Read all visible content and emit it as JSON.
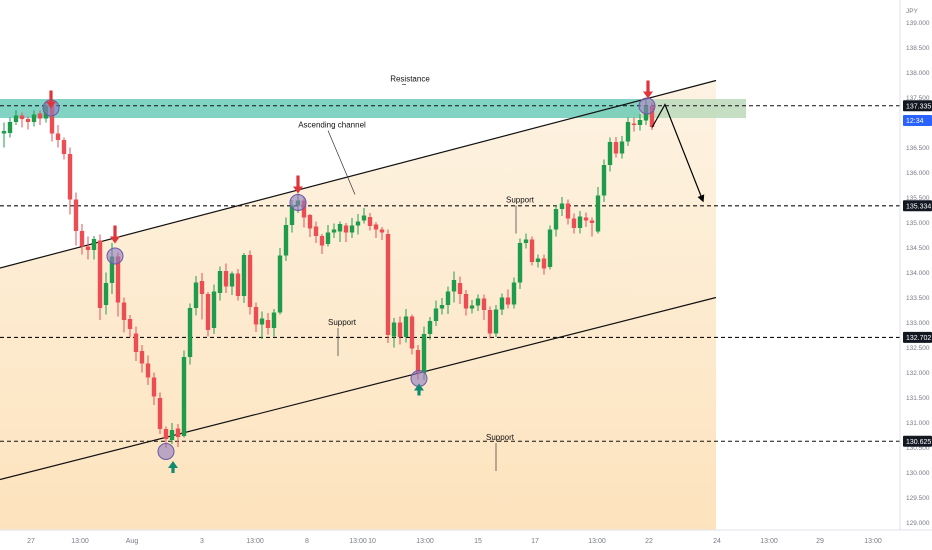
{
  "chart_data": {
    "type": "candlestick",
    "currency": "JPY",
    "ylim": [
      128.85,
      139.45
    ],
    "y_ticks": [
      "139.000",
      "138.500",
      "138.000",
      "137.500",
      "137.000",
      "136.500",
      "136.000",
      "135.500",
      "135.000",
      "134.500",
      "134.000",
      "133.500",
      "133.000",
      "132.500",
      "132.000",
      "131.500",
      "131.000",
      "130.500",
      "130.000",
      "129.500",
      "129.000"
    ],
    "x_ticks": [
      "27",
      "13:00",
      "Aug",
      "3",
      "13:00",
      "8",
      "13:00",
      "10",
      "13:00",
      "15",
      "17",
      "13:00",
      "22",
      "24",
      "13:00",
      "29",
      "13:00"
    ],
    "price_badges": [
      {
        "label": "137.335",
        "value": 137.335,
        "style": "dark"
      },
      {
        "label": "12:34",
        "value": 137.04,
        "style": "blue"
      },
      {
        "label": "135.334",
        "value": 135.334,
        "style": "dark"
      },
      {
        "label": "132.702",
        "value": 132.702,
        "style": "dark"
      },
      {
        "label": "130.625",
        "value": 130.625,
        "style": "dark"
      }
    ],
    "horizontal_levels": [
      137.335,
      135.334,
      132.702,
      130.625
    ],
    "resistance_zone": {
      "from": 137.09,
      "to": 137.47
    },
    "ascending_channel": {
      "upper": {
        "start": [
          0,
          134.09
        ],
        "end": [
          716,
          137.84
        ]
      },
      "lower": {
        "start": [
          0,
          129.86
        ],
        "end": [
          716,
          133.5
        ]
      }
    },
    "projection": [
      [
        652,
        136.9
      ],
      [
        665,
        137.36
      ],
      [
        703,
        135.43
      ]
    ],
    "annotations": [
      {
        "text": "Resistance",
        "level": 137.3
      },
      {
        "text": "Ascending channel",
        "level": 136.7
      },
      {
        "text": "Support",
        "level": 135.4
      },
      {
        "text": "Support",
        "level": 132.95
      },
      {
        "text": "Support",
        "level": 130.65
      }
    ],
    "markers": {
      "down_arrows": [
        [
          51,
          137.1
        ],
        [
          115,
          134.4
        ],
        [
          298,
          135.4
        ],
        [
          648,
          137.3
        ]
      ],
      "up_arrows": [
        [
          173,
          130.35
        ],
        [
          419,
          131.9
        ]
      ],
      "circles": [
        [
          51,
          137.29
        ],
        [
          115,
          134.33
        ],
        [
          298,
          135.4
        ],
        [
          166,
          130.42
        ],
        [
          419,
          131.88
        ],
        [
          647,
          137.33
        ]
      ]
    },
    "candles": [
      [
        4,
        136.78,
        136.83,
        136.5,
        137.0
      ],
      [
        10,
        136.79,
        137.01,
        136.7,
        137.1
      ],
      [
        16,
        137.01,
        137.14,
        136.95,
        137.25
      ],
      [
        22,
        137.14,
        137.07,
        136.9,
        137.2
      ],
      [
        28,
        137.07,
        137.01,
        136.86,
        137.12
      ],
      [
        34,
        137.01,
        137.16,
        136.92,
        137.24
      ],
      [
        40,
        137.18,
        137.08,
        136.95,
        137.24
      ],
      [
        46,
        137.08,
        137.34,
        137.0,
        137.42
      ],
      [
        52,
        137.34,
        136.78,
        136.62,
        137.5
      ],
      [
        58,
        136.78,
        136.65,
        136.5,
        136.95
      ],
      [
        64,
        136.65,
        136.37,
        136.26,
        136.7
      ],
      [
        70,
        136.37,
        135.46,
        135.16,
        136.5
      ],
      [
        76,
        135.46,
        134.83,
        134.54,
        135.6
      ],
      [
        82,
        134.83,
        134.52,
        134.36,
        134.97
      ],
      [
        88,
        134.52,
        134.45,
        134.26,
        134.72
      ],
      [
        94,
        134.45,
        134.67,
        134.26,
        134.73
      ],
      [
        100,
        134.64,
        133.29,
        133.05,
        134.76
      ],
      [
        106,
        133.35,
        133.79,
        133.16,
        134.0
      ],
      [
        112,
        133.79,
        134.32,
        133.57,
        134.59
      ],
      [
        118,
        134.32,
        133.4,
        133.12,
        134.4
      ],
      [
        124,
        133.4,
        133.05,
        132.8,
        133.5
      ],
      [
        130,
        133.07,
        132.87,
        132.71,
        133.15
      ],
      [
        136,
        132.78,
        132.41,
        132.23,
        132.92
      ],
      [
        142,
        132.43,
        132.18,
        132.0,
        132.55
      ],
      [
        148,
        132.18,
        131.9,
        131.75,
        132.34
      ],
      [
        154,
        131.9,
        131.52,
        131.35,
        132.0
      ],
      [
        160,
        131.49,
        130.87,
        130.77,
        131.6
      ],
      [
        166,
        130.87,
        130.67,
        130.49,
        130.92
      ],
      [
        172,
        130.65,
        130.85,
        130.57,
        130.99
      ],
      [
        178,
        130.88,
        130.71,
        130.51,
        130.97
      ],
      [
        184,
        130.73,
        132.31,
        130.7,
        132.44
      ],
      [
        190,
        132.31,
        133.29,
        132.16,
        133.38
      ],
      [
        196,
        133.29,
        133.8,
        133.14,
        133.93
      ],
      [
        202,
        133.83,
        133.57,
        133.06,
        133.99
      ],
      [
        208,
        133.57,
        132.85,
        132.72,
        133.61
      ],
      [
        214,
        132.89,
        133.62,
        132.77,
        133.76
      ],
      [
        220,
        133.59,
        134.03,
        133.44,
        134.12
      ],
      [
        226,
        134.03,
        133.72,
        133.59,
        134.18
      ],
      [
        232,
        133.72,
        133.98,
        133.55,
        134.02
      ],
      [
        238,
        133.98,
        133.53,
        133.44,
        134.07
      ],
      [
        244,
        133.53,
        134.35,
        133.39,
        134.39
      ],
      [
        250,
        134.35,
        133.31,
        133.16,
        134.44
      ],
      [
        256,
        133.31,
        132.96,
        132.81,
        133.4
      ],
      [
        262,
        132.96,
        133.08,
        132.67,
        133.22
      ],
      [
        268,
        133.05,
        132.89,
        132.76,
        133.19
      ],
      [
        274,
        132.89,
        133.2,
        132.72,
        133.27
      ],
      [
        280,
        133.2,
        134.34,
        133.16,
        134.49
      ],
      [
        286,
        134.34,
        134.95,
        134.23,
        135.1
      ],
      [
        292,
        134.95,
        135.34,
        134.8,
        135.45
      ],
      [
        298,
        135.34,
        135.44,
        135.19,
        135.58
      ],
      [
        304,
        135.44,
        135.1,
        134.9,
        135.5
      ],
      [
        310,
        135.15,
        134.88,
        134.71,
        135.17
      ],
      [
        316,
        134.92,
        134.73,
        134.59,
        135.02
      ],
      [
        322,
        134.73,
        134.54,
        134.37,
        134.77
      ],
      [
        328,
        134.57,
        134.8,
        134.52,
        134.95
      ],
      [
        334,
        134.8,
        134.86,
        134.69,
        134.98
      ],
      [
        340,
        134.82,
        134.97,
        134.61,
        135.02
      ],
      [
        346,
        134.94,
        134.8,
        134.61,
        134.99
      ],
      [
        352,
        134.8,
        134.94,
        134.69,
        135.09
      ],
      [
        358,
        134.94,
        135.02,
        134.76,
        135.17
      ],
      [
        364,
        135.04,
        135.14,
        134.98,
        135.29
      ],
      [
        370,
        135.11,
        134.93,
        134.84,
        135.19
      ],
      [
        376,
        134.96,
        134.86,
        134.69,
        135.01
      ],
      [
        382,
        134.86,
        134.8,
        134.65,
        134.91
      ],
      [
        388,
        134.77,
        132.75,
        132.59,
        134.86
      ],
      [
        394,
        132.72,
        133.0,
        132.5,
        133.09
      ],
      [
        400,
        133.0,
        132.71,
        132.56,
        133.12
      ],
      [
        406,
        132.71,
        133.12,
        132.6,
        133.27
      ],
      [
        412,
        133.12,
        132.48,
        132.36,
        133.16
      ],
      [
        418,
        132.45,
        131.99,
        131.86,
        132.55
      ],
      [
        424,
        131.99,
        132.77,
        131.85,
        132.92
      ],
      [
        430,
        132.77,
        133.03,
        132.66,
        133.11
      ],
      [
        436,
        133.03,
        133.28,
        132.93,
        133.44
      ],
      [
        442,
        133.28,
        133.35,
        133.16,
        133.49
      ],
      [
        448,
        133.35,
        133.62,
        133.17,
        133.72
      ],
      [
        454,
        133.62,
        133.85,
        133.4,
        134.02
      ],
      [
        460,
        133.79,
        133.57,
        133.37,
        133.92
      ],
      [
        466,
        133.57,
        133.28,
        133.14,
        133.65
      ],
      [
        472,
        133.28,
        133.34,
        133.18,
        133.45
      ],
      [
        478,
        133.34,
        133.48,
        133.23,
        133.56
      ],
      [
        484,
        133.48,
        133.25,
        133.05,
        133.56
      ],
      [
        490,
        133.25,
        132.78,
        132.68,
        133.32
      ],
      [
        496,
        132.78,
        133.26,
        132.71,
        133.35
      ],
      [
        502,
        133.26,
        133.5,
        133.15,
        133.58
      ],
      [
        508,
        133.5,
        133.36,
        133.28,
        133.66
      ],
      [
        514,
        133.36,
        133.8,
        133.28,
        133.9
      ],
      [
        520,
        133.8,
        134.59,
        133.67,
        134.68
      ],
      [
        526,
        134.59,
        134.66,
        134.48,
        134.78
      ],
      [
        532,
        134.66,
        134.21,
        134.14,
        134.72
      ],
      [
        538,
        134.21,
        134.28,
        134.1,
        134.36
      ],
      [
        544,
        134.28,
        134.08,
        133.96,
        134.36
      ],
      [
        550,
        134.11,
        134.86,
        134.06,
        134.94
      ],
      [
        556,
        134.86,
        135.27,
        134.72,
        135.35
      ],
      [
        562,
        135.27,
        135.38,
        135.13,
        135.51
      ],
      [
        568,
        135.38,
        135.08,
        134.96,
        135.46
      ],
      [
        574,
        135.08,
        134.89,
        134.78,
        135.18
      ],
      [
        580,
        134.89,
        135.12,
        134.78,
        135.23
      ],
      [
        586,
        135.1,
        135.04,
        134.91,
        135.2
      ],
      [
        592,
        135.04,
        134.99,
        134.72,
        135.1
      ],
      [
        598,
        134.82,
        135.54,
        134.78,
        135.71
      ],
      [
        604,
        135.54,
        136.15,
        135.41,
        136.26
      ],
      [
        610,
        136.15,
        136.61,
        136.02,
        136.7
      ],
      [
        616,
        136.61,
        136.38,
        136.3,
        136.71
      ],
      [
        622,
        136.38,
        136.62,
        136.28,
        136.73
      ],
      [
        628,
        136.62,
        137.01,
        136.53,
        137.1
      ],
      [
        634,
        136.98,
        136.95,
        136.82,
        137.1
      ],
      [
        640,
        136.95,
        137.05,
        136.84,
        137.17
      ],
      [
        646,
        137.04,
        137.33,
        136.95,
        137.45
      ],
      [
        652,
        137.33,
        136.91,
        136.85,
        137.4
      ]
    ]
  }
}
